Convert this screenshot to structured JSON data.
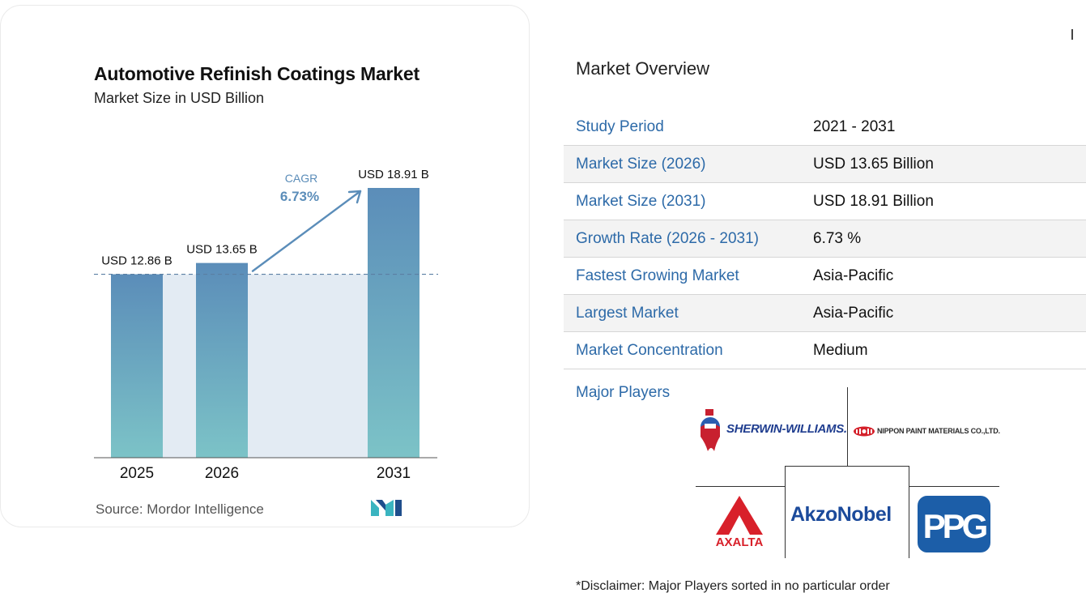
{
  "chart_data": {
    "type": "bar",
    "title": "Automotive Refinish Coatings Market",
    "subtitle": "Market Size in USD Billion",
    "categories": [
      "2025",
      "2026",
      "2031"
    ],
    "values": [
      12.86,
      13.65,
      18.91
    ],
    "value_labels": [
      "USD 12.86 B",
      "USD 13.65 B",
      "USD 18.91 B"
    ],
    "ylim": [
      0,
      18.91
    ],
    "annotation": {
      "label": "CAGR",
      "value": "6.73%"
    },
    "colors": {
      "bar_top": "#5b8db9",
      "bar_bottom": "#7cc3c7",
      "band": "#e3ebf3",
      "arrow": "#5b8db9",
      "cagr_text": "#5b8db9"
    }
  },
  "source": "Source: Mordor Intelligence",
  "overview": {
    "title": "Market Overview",
    "rows": [
      {
        "key": "Study Period",
        "value": "2021 - 2031"
      },
      {
        "key": "Market Size (2026)",
        "value": "USD 13.65 Billion"
      },
      {
        "key": "Market Size (2031)",
        "value": "USD 18.91 Billion"
      },
      {
        "key": "Growth Rate (2026 - 2031)",
        "value": "6.73 %"
      },
      {
        "key": "Fastest Growing Market",
        "value": "Asia-Pacific"
      },
      {
        "key": "Largest Market",
        "value": "Asia-Pacific"
      },
      {
        "key": "Market Concentration",
        "value": "Medium"
      }
    ],
    "major_players_label": "Major Players",
    "players": {
      "sherwin": "SHERWIN-WILLIAMS.",
      "nippon": "NIPPON PAINT MATERIALS CO.,LTD.",
      "axalta": "AXALTA",
      "akzonobel": "AkzoNobel",
      "ppg": "PPG"
    },
    "disclaimer": "*Disclaimer: Major Players sorted in no particular order"
  }
}
